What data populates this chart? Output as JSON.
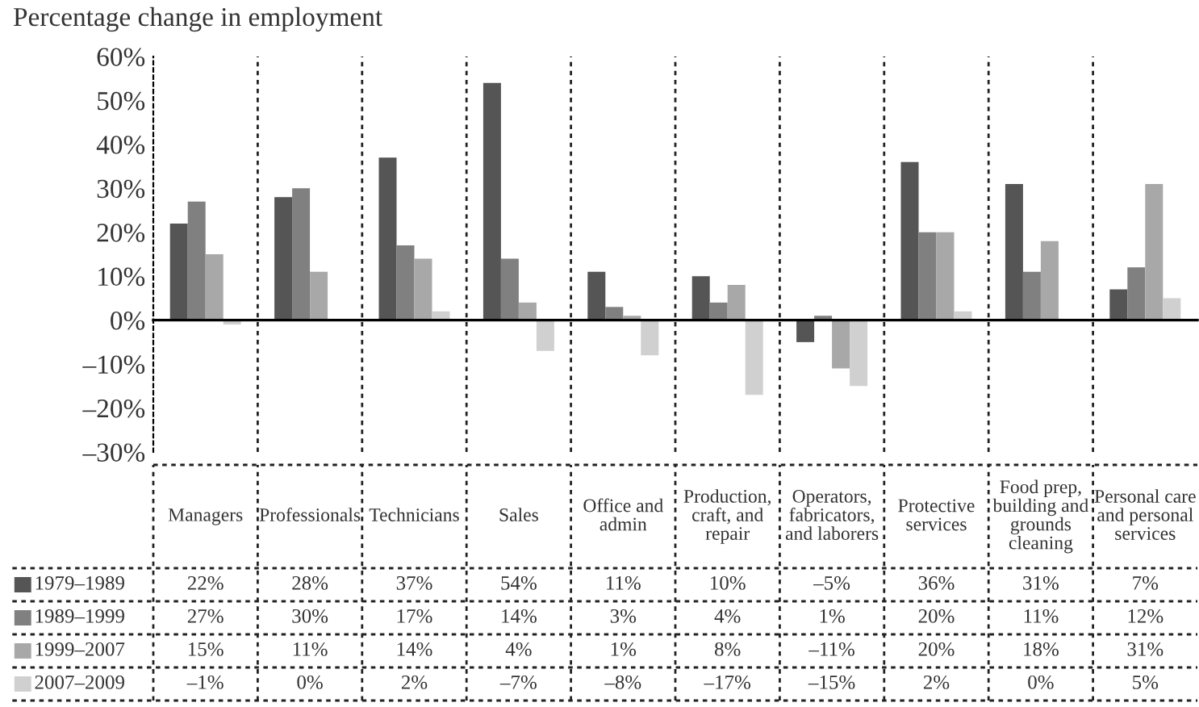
{
  "chart_data": {
    "type": "bar",
    "title": "Percentage change in employment",
    "categories": [
      "Managers",
      "Professionals",
      "Technicians",
      "Sales",
      "Office and admin",
      "Production, craft, and repair",
      "Operators, fabricators, and laborers",
      "Protective services",
      "Food prep, building and grounds cleaning",
      "Personal care and personal services"
    ],
    "series": [
      {
        "name": "1979–1989",
        "color": "#555555",
        "values": [
          22,
          28,
          37,
          54,
          11,
          10,
          -5,
          36,
          31,
          7
        ],
        "value_labels": [
          "22%",
          "28%",
          "37%",
          "54%",
          "11%",
          "10%",
          "–5%",
          "36%",
          "31%",
          "7%"
        ]
      },
      {
        "name": "1989–1999",
        "color": "#808080",
        "values": [
          27,
          30,
          17,
          14,
          3,
          4,
          1,
          20,
          11,
          12
        ],
        "value_labels": [
          "27%",
          "30%",
          "17%",
          "14%",
          "3%",
          "4%",
          "1%",
          "20%",
          "11%",
          "12%"
        ]
      },
      {
        "name": "1999–2007",
        "color": "#a8a8a8",
        "values": [
          15,
          11,
          14,
          4,
          1,
          8,
          -11,
          20,
          18,
          31
        ],
        "value_labels": [
          "15%",
          "11%",
          "14%",
          "4%",
          "1%",
          "8%",
          "–11%",
          "20%",
          "18%",
          "31%"
        ]
      },
      {
        "name": "2007–2009",
        "color": "#d0d0d0",
        "values": [
          -1,
          0,
          2,
          -7,
          -8,
          -17,
          -15,
          2,
          0,
          5
        ],
        "value_labels": [
          "–1%",
          "0%",
          "2%",
          "–7%",
          "–8%",
          "–17%",
          "–15%",
          "2%",
          "0%",
          "5%"
        ]
      }
    ],
    "ylim": [
      -30,
      60
    ],
    "yticks": [
      {
        "value": -30,
        "label": "–30%"
      },
      {
        "value": -20,
        "label": "–20%"
      },
      {
        "value": -10,
        "label": "–10%"
      },
      {
        "value": 0,
        "label": "0%"
      },
      {
        "value": 10,
        "label": "10%"
      },
      {
        "value": 20,
        "label": "20%"
      },
      {
        "value": 30,
        "label": "30%"
      },
      {
        "value": 40,
        "label": "40%"
      },
      {
        "value": 50,
        "label": "50%"
      },
      {
        "value": 60,
        "label": "60%"
      }
    ],
    "grid": false,
    "legend": "bottom left"
  }
}
